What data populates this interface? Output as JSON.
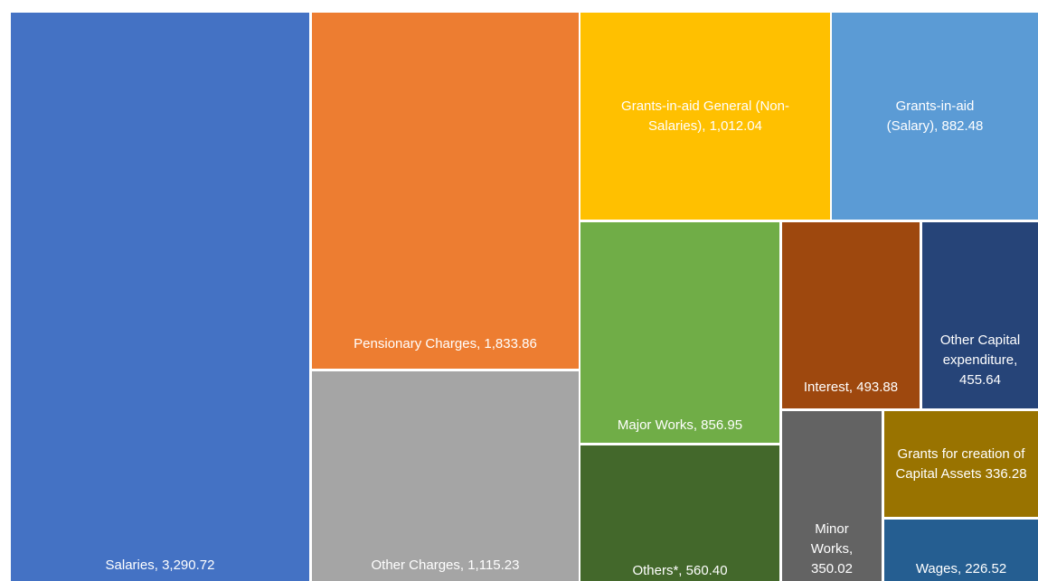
{
  "chart_data": {
    "type": "treemap",
    "categories": [
      "Salaries,",
      "Pensionary Charges,",
      "Other Charges,",
      "Grants-in-aid General (Non-Salaries),",
      "Grants-in-aid (Salary),",
      "Major Works,",
      "Others*,",
      "Interest,",
      "Other Capital expenditure,",
      "Minor Works,",
      "Grants for creation of Capital Assets",
      "Wages,"
    ],
    "values": [
      3290.72,
      1833.86,
      1115.23,
      1012.04,
      882.48,
      856.95,
      560.4,
      493.88,
      455.64,
      350.02,
      336.28,
      226.52
    ],
    "value_labels": [
      "3,290.72",
      "1,833.86",
      "1,115.23",
      "1,012.04",
      "882.48",
      "856.95",
      "560.40",
      "493.88",
      "455.64",
      "350.02",
      "336.28",
      "226.52"
    ],
    "colors": [
      "#4472c4",
      "#ed7d31",
      "#a5a5a5",
      "#ffc000",
      "#5b9bd5",
      "#70ad47",
      "#43682b",
      "#9e480e",
      "#264478",
      "#636363",
      "#997300",
      "#255e91"
    ]
  }
}
